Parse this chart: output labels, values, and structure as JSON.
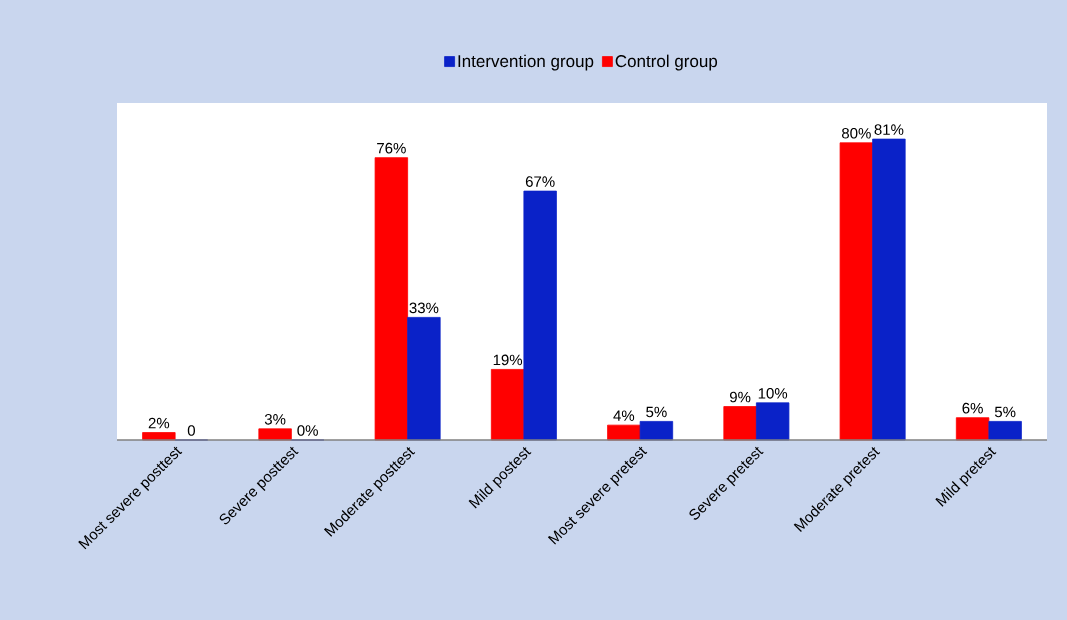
{
  "chart_data": {
    "type": "bar",
    "categories": [
      "Most severe posttest",
      "Severe posttest",
      "Moderate posttest",
      "Mild postest",
      "Most severe pretest",
      "Severe pretest",
      "Moderate pretest",
      "Mild pretest"
    ],
    "series": [
      {
        "name": "Control group",
        "color": "#ff0000",
        "values": [
          2,
          3,
          76,
          19,
          4,
          9,
          80,
          6
        ],
        "value_labels": [
          "2%",
          "3%",
          "76%",
          "19%",
          "4%",
          "9%",
          "80%",
          "6%"
        ]
      },
      {
        "name": "Intervention group",
        "color": "#0a22c8",
        "values": [
          0,
          0,
          33,
          67,
          5,
          10,
          81,
          5
        ],
        "value_labels": [
          "0",
          "0%",
          "33%",
          "67%",
          "5%",
          "10%",
          "81%",
          "5%"
        ]
      }
    ],
    "legend": "top"
  }
}
